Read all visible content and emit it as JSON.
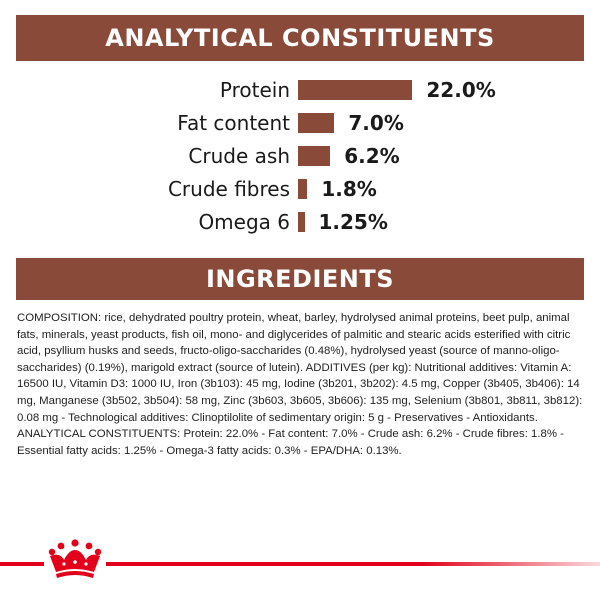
{
  "colors": {
    "band": "#8a4a3a",
    "bar": "#8a4a3a",
    "brand_red": "#e2001a"
  },
  "analytical": {
    "title": "ANALYTICAL CONSTITUENTS",
    "rows": [
      {
        "label": "Protein",
        "value": "22.0%",
        "pct": 22.0
      },
      {
        "label": "Fat content",
        "value": "7.0%",
        "pct": 7.0
      },
      {
        "label": "Crude ash",
        "value": "6.2%",
        "pct": 6.2
      },
      {
        "label": "Crude fibres",
        "value": "1.8%",
        "pct": 1.8
      },
      {
        "label": "Omega 6",
        "value": "1.25%",
        "pct": 1.25
      }
    ]
  },
  "ingredients": {
    "title": "INGREDIENTS",
    "text": "COMPOSITION: rice, dehydrated poultry protein, wheat, barley, hydrolysed animal proteins, beet pulp, animal fats, minerals, yeast products, fish oil, mono- and diglycerides of palmitic and stearic acids esterified with citric acid, psyllium husks and seeds, fructo-oligo-saccharides (0.48%), hydrolysed yeast (source of manno-oligo-saccharides) (0.19%), marigold extract (source of lutein). ADDITIVES (per kg): Nutritional additives: Vitamin A: 16500 IU, Vitamin D3: 1000 IU, Iron (3b103): 45 mg, Iodine (3b201, 3b202): 4.5 mg, Copper (3b405, 3b406): 14 mg, Manganese (3b502, 3b504): 58 mg, Zinc (3b603, 3b605, 3b606): 135 mg, Selenium (3b801, 3b811, 3b812): 0.08 mg - Technological additives: Clinoptilolite of sedimentary origin: 5 g - Preservatives - Antioxidants. ANALYTICAL CONSTITUENTS: Protein: 22.0% - Fat content: 7.0% - Crude ash: 6.2% - Crude fibres: 1.8% - Essential fatty acids: 1.25% - Omega-3 fatty acids: 0.3% - EPA/DHA: 0.13%."
  },
  "footer": {
    "logo_icon": "royal-canin-crown-icon"
  }
}
